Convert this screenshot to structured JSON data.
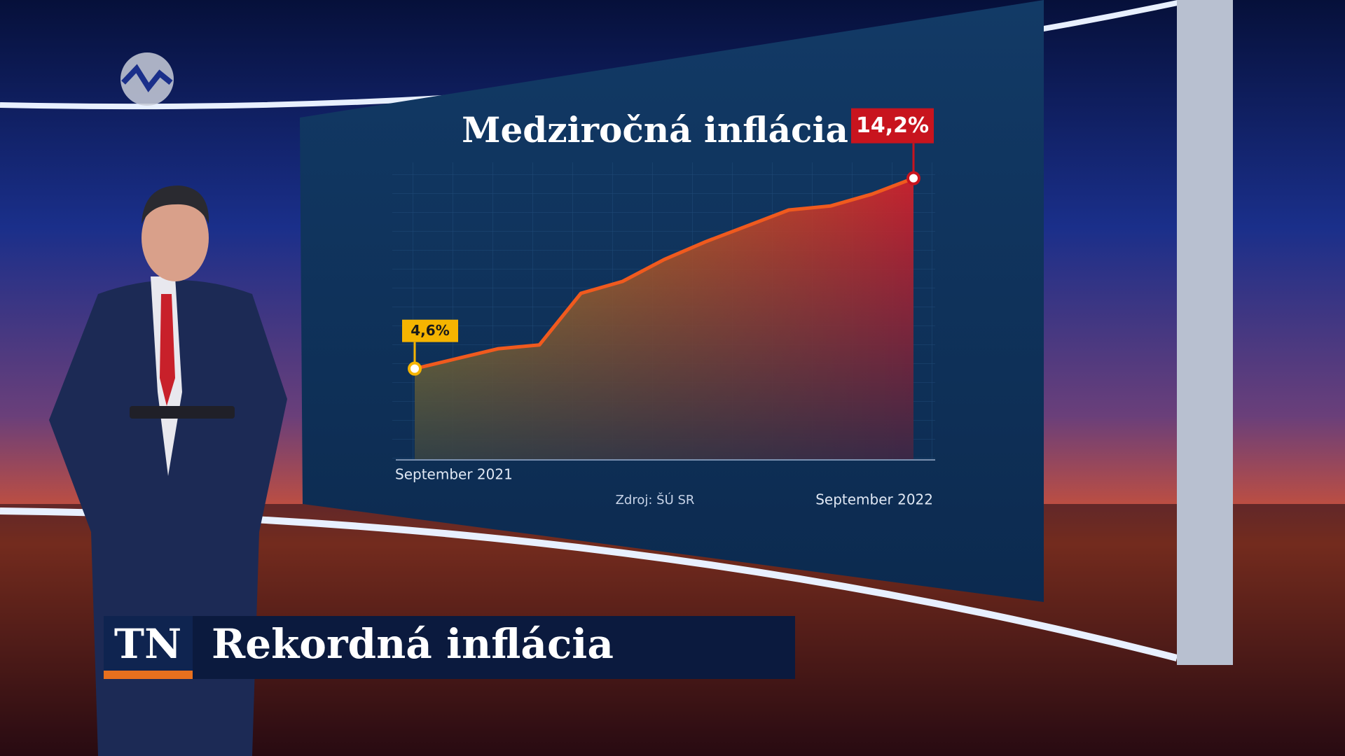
{
  "chart_data": {
    "type": "area",
    "title": "Medziročná inflácia",
    "source": "Zdroj: ŠÚ SR",
    "categories": [
      "September 2021",
      null,
      null,
      null,
      null,
      null,
      null,
      null,
      null,
      null,
      null,
      null,
      "September 2022"
    ],
    "values": [
      4.6,
      5.1,
      5.6,
      5.8,
      8.4,
      9.0,
      10.1,
      11.0,
      11.8,
      12.6,
      12.8,
      13.4,
      14.2
    ],
    "value_labels": [
      "4,6%",
      null,
      null,
      null,
      null,
      null,
      null,
      null,
      null,
      null,
      null,
      null,
      "14,2%"
    ],
    "label_colors": [
      "#f5b400",
      null,
      null,
      null,
      null,
      null,
      null,
      null,
      null,
      null,
      null,
      null,
      "#c8141e"
    ],
    "color": "#f05a1e",
    "ylim": [
      0,
      15
    ]
  },
  "lower_third": {
    "logo": "TN",
    "headline": "Rekordná inflácia"
  }
}
